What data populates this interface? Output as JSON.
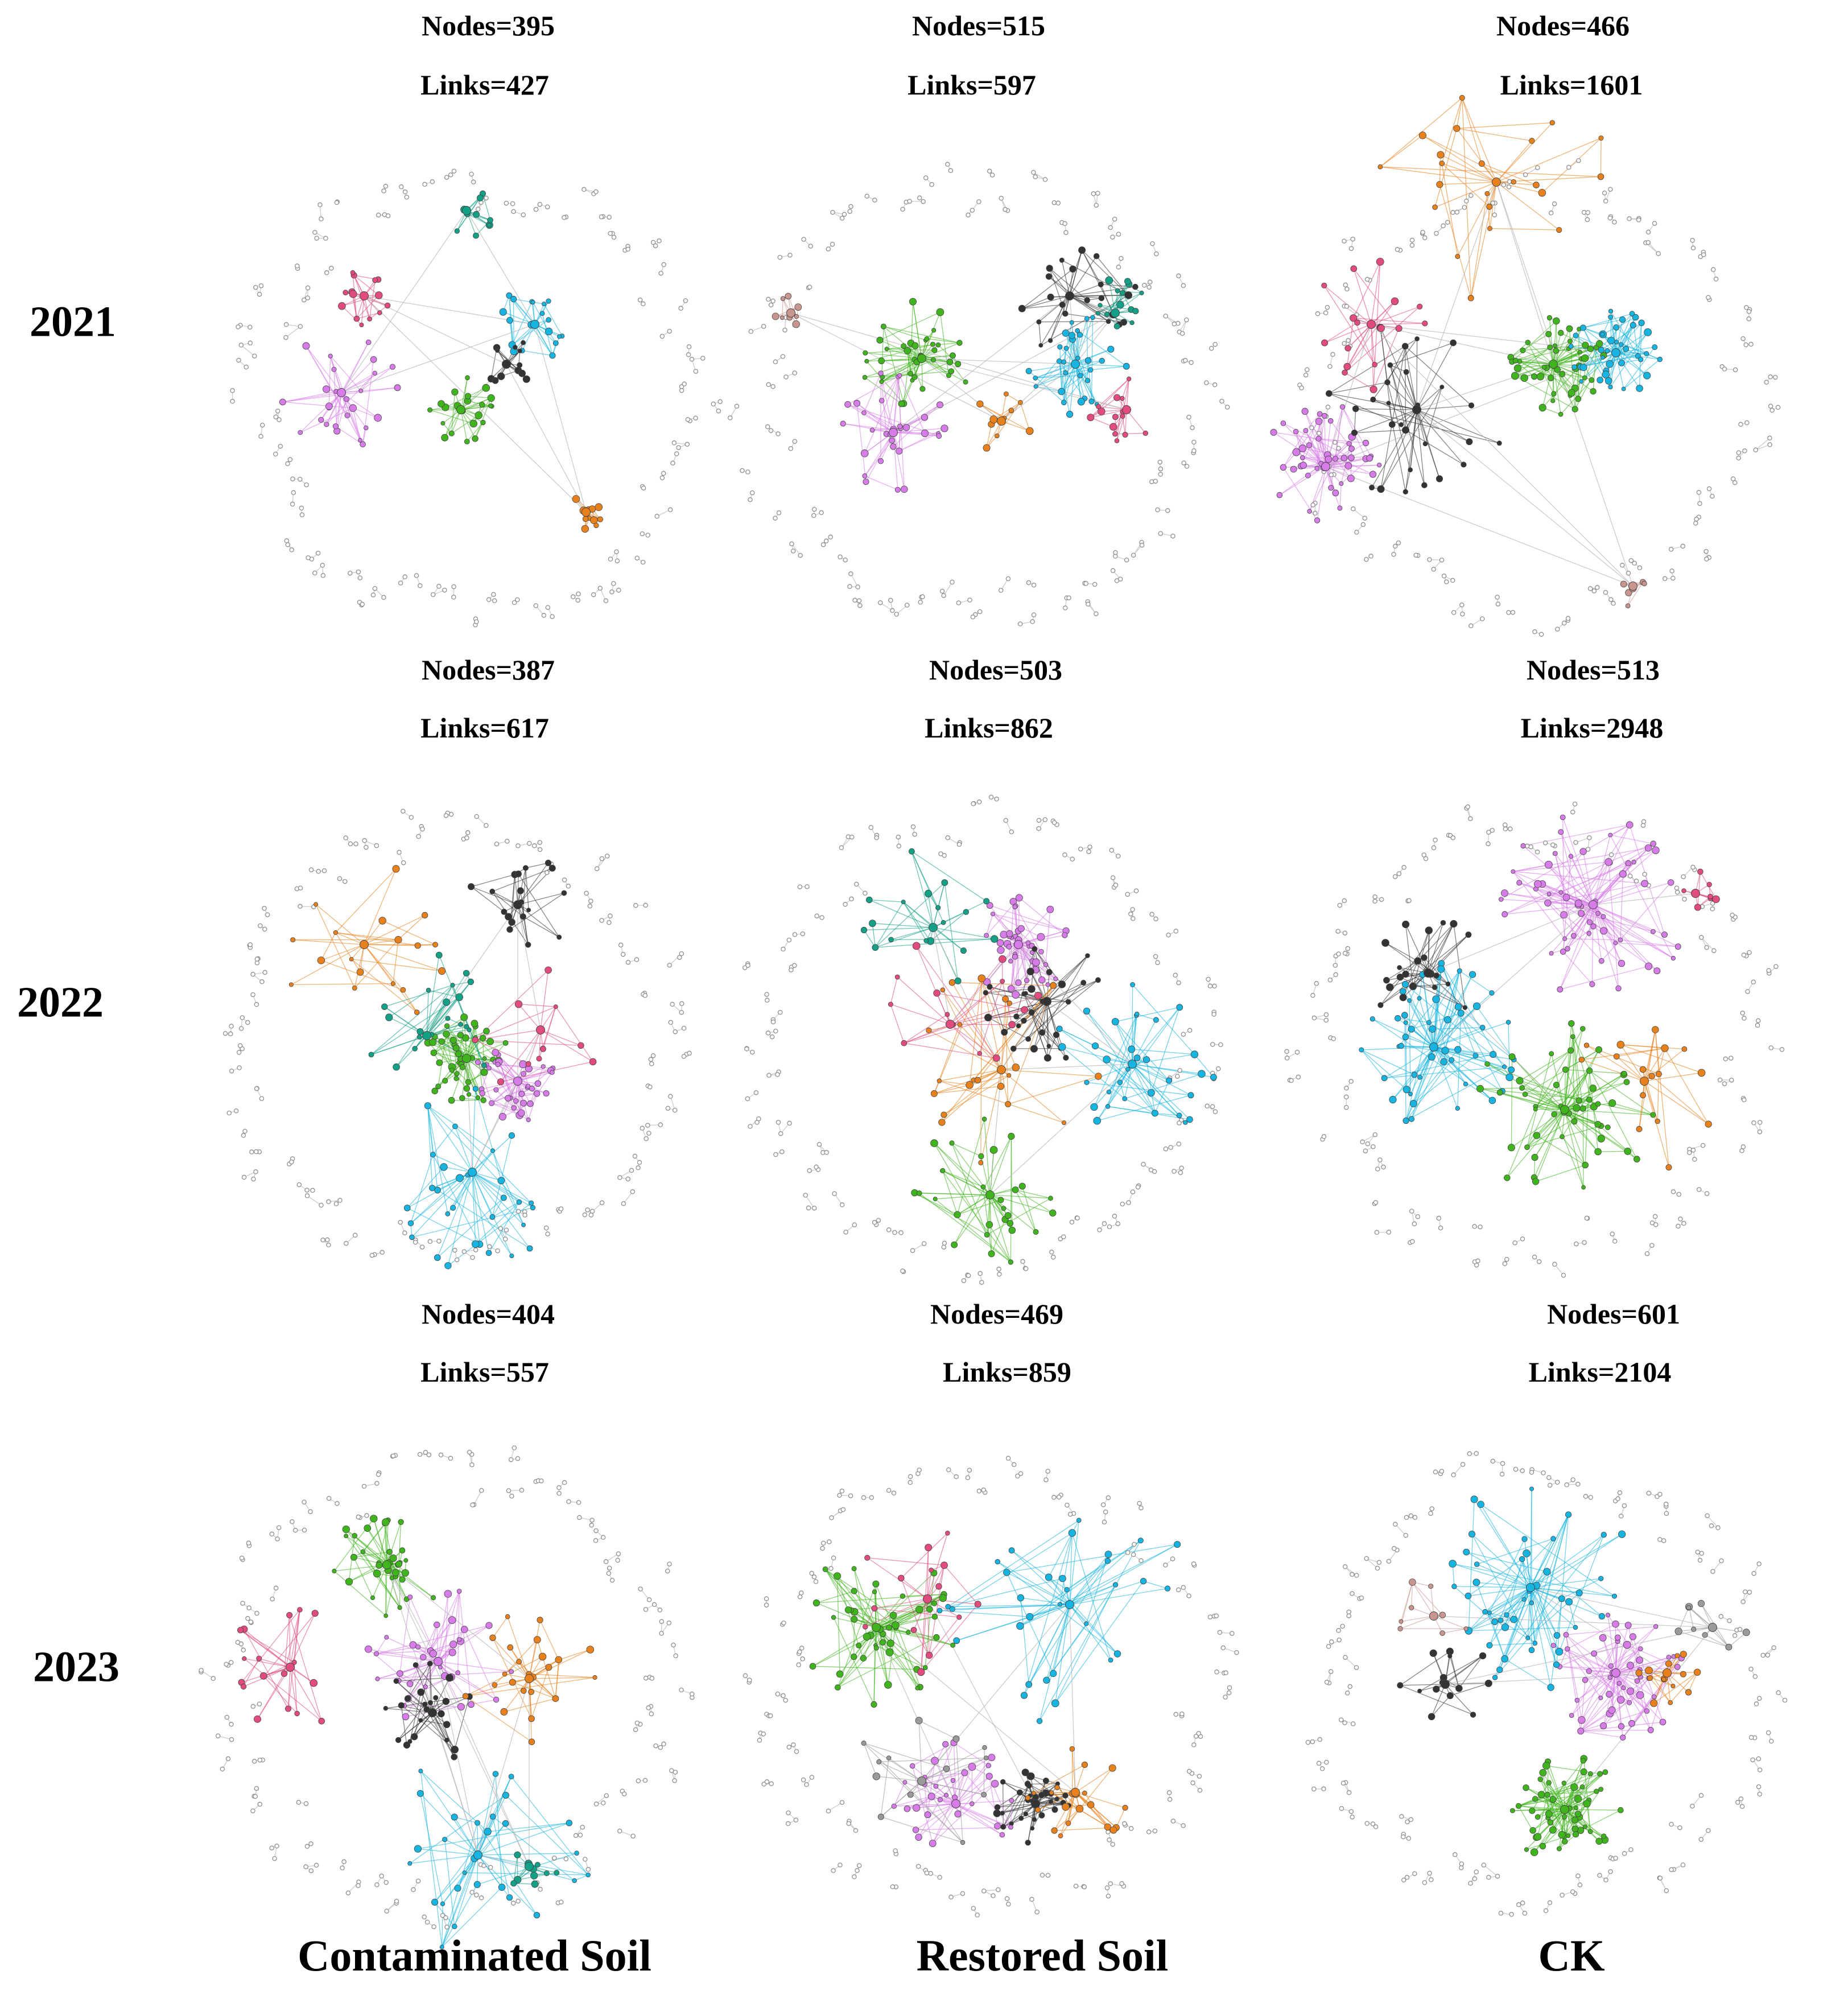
{
  "years": [
    "2021",
    "2022",
    "2023"
  ],
  "groups": [
    "Contaminated Soil",
    "Restored Soil",
    "CK"
  ],
  "panels": [
    {
      "year": "2021",
      "group": "Contaminated Soil",
      "nodes_label": "Nodes=395",
      "links_label": "Links=427",
      "nodes": 395,
      "links": 427
    },
    {
      "year": "2021",
      "group": "Restored Soil",
      "nodes_label": "Nodes=515",
      "links_label": "Links=597",
      "nodes": 515,
      "links": 597
    },
    {
      "year": "2021",
      "group": "CK",
      "nodes_label": "Nodes=466",
      "links_label": "Links=1601",
      "nodes": 466,
      "links": 1601
    },
    {
      "year": "2022",
      "group": "Contaminated Soil",
      "nodes_label": "Nodes=387",
      "links_label": "Links=617",
      "nodes": 387,
      "links": 617
    },
    {
      "year": "2022",
      "group": "Restored Soil",
      "nodes_label": "Nodes=503",
      "links_label": "Links=862",
      "nodes": 503,
      "links": 862
    },
    {
      "year": "2022",
      "group": "CK",
      "nodes_label": "Nodes=513",
      "links_label": "Links=2948",
      "nodes": 513,
      "links": 2948
    },
    {
      "year": "2023",
      "group": "Contaminated Soil",
      "nodes_label": "Nodes=404",
      "links_label": "Links=557",
      "nodes": 404,
      "links": 557
    },
    {
      "year": "2023",
      "group": "Restored Soil",
      "nodes_label": "Nodes=469",
      "links_label": "Links=859",
      "nodes": 469,
      "links": 859
    },
    {
      "year": "2023",
      "group": "CK",
      "nodes_label": "Nodes=601",
      "links_label": "Links=2104",
      "nodes": 601,
      "links": 2104
    }
  ],
  "module_colors": {
    "green": "#3fb41c",
    "cyan": "#16b4e0",
    "violet": "#d77be8",
    "black": "#333333",
    "orange": "#e8811b",
    "pink": "#e14b7d",
    "teal": "#12a087",
    "gray": "#9a9a9a",
    "brown": "#c9958f"
  }
}
